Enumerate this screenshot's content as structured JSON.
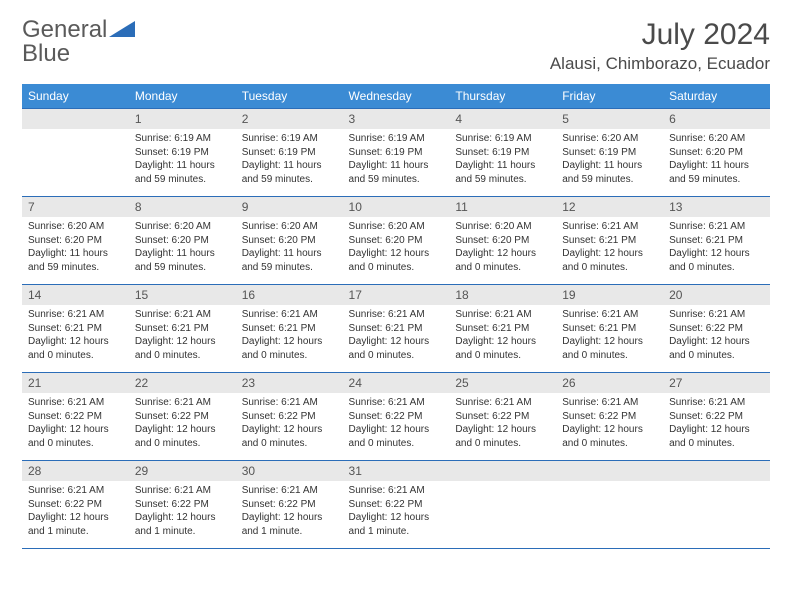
{
  "brand": {
    "word1": "General",
    "word2": "Blue"
  },
  "colors": {
    "header_bg": "#3b8bd4",
    "header_text": "#ffffff",
    "border": "#2b6db8",
    "daynum_bg": "#e8e8e8",
    "daynum_text": "#555555",
    "body_text": "#333333",
    "title_text": "#4a4a4a",
    "logo_gray": "#5a5a5a",
    "logo_blue": "#2b6db8"
  },
  "title": "July 2024",
  "location": "Alausi, Chimborazo, Ecuador",
  "weekdays": [
    "Sunday",
    "Monday",
    "Tuesday",
    "Wednesday",
    "Thursday",
    "Friday",
    "Saturday"
  ],
  "layout": {
    "columns": 7,
    "rows": 5,
    "first_weekday_index": 1,
    "daynum_fontsize": 12,
    "cell_fontsize": 10,
    "header_fontsize": 12,
    "title_fontsize": 30,
    "location_fontsize": 17
  },
  "days": [
    {
      "n": 1,
      "sunrise": "6:19 AM",
      "sunset": "6:19 PM",
      "daylight": "11 hours and 59 minutes."
    },
    {
      "n": 2,
      "sunrise": "6:19 AM",
      "sunset": "6:19 PM",
      "daylight": "11 hours and 59 minutes."
    },
    {
      "n": 3,
      "sunrise": "6:19 AM",
      "sunset": "6:19 PM",
      "daylight": "11 hours and 59 minutes."
    },
    {
      "n": 4,
      "sunrise": "6:19 AM",
      "sunset": "6:19 PM",
      "daylight": "11 hours and 59 minutes."
    },
    {
      "n": 5,
      "sunrise": "6:20 AM",
      "sunset": "6:19 PM",
      "daylight": "11 hours and 59 minutes."
    },
    {
      "n": 6,
      "sunrise": "6:20 AM",
      "sunset": "6:20 PM",
      "daylight": "11 hours and 59 minutes."
    },
    {
      "n": 7,
      "sunrise": "6:20 AM",
      "sunset": "6:20 PM",
      "daylight": "11 hours and 59 minutes."
    },
    {
      "n": 8,
      "sunrise": "6:20 AM",
      "sunset": "6:20 PM",
      "daylight": "11 hours and 59 minutes."
    },
    {
      "n": 9,
      "sunrise": "6:20 AM",
      "sunset": "6:20 PM",
      "daylight": "11 hours and 59 minutes."
    },
    {
      "n": 10,
      "sunrise": "6:20 AM",
      "sunset": "6:20 PM",
      "daylight": "12 hours and 0 minutes."
    },
    {
      "n": 11,
      "sunrise": "6:20 AM",
      "sunset": "6:20 PM",
      "daylight": "12 hours and 0 minutes."
    },
    {
      "n": 12,
      "sunrise": "6:21 AM",
      "sunset": "6:21 PM",
      "daylight": "12 hours and 0 minutes."
    },
    {
      "n": 13,
      "sunrise": "6:21 AM",
      "sunset": "6:21 PM",
      "daylight": "12 hours and 0 minutes."
    },
    {
      "n": 14,
      "sunrise": "6:21 AM",
      "sunset": "6:21 PM",
      "daylight": "12 hours and 0 minutes."
    },
    {
      "n": 15,
      "sunrise": "6:21 AM",
      "sunset": "6:21 PM",
      "daylight": "12 hours and 0 minutes."
    },
    {
      "n": 16,
      "sunrise": "6:21 AM",
      "sunset": "6:21 PM",
      "daylight": "12 hours and 0 minutes."
    },
    {
      "n": 17,
      "sunrise": "6:21 AM",
      "sunset": "6:21 PM",
      "daylight": "12 hours and 0 minutes."
    },
    {
      "n": 18,
      "sunrise": "6:21 AM",
      "sunset": "6:21 PM",
      "daylight": "12 hours and 0 minutes."
    },
    {
      "n": 19,
      "sunrise": "6:21 AM",
      "sunset": "6:21 PM",
      "daylight": "12 hours and 0 minutes."
    },
    {
      "n": 20,
      "sunrise": "6:21 AM",
      "sunset": "6:22 PM",
      "daylight": "12 hours and 0 minutes."
    },
    {
      "n": 21,
      "sunrise": "6:21 AM",
      "sunset": "6:22 PM",
      "daylight": "12 hours and 0 minutes."
    },
    {
      "n": 22,
      "sunrise": "6:21 AM",
      "sunset": "6:22 PM",
      "daylight": "12 hours and 0 minutes."
    },
    {
      "n": 23,
      "sunrise": "6:21 AM",
      "sunset": "6:22 PM",
      "daylight": "12 hours and 0 minutes."
    },
    {
      "n": 24,
      "sunrise": "6:21 AM",
      "sunset": "6:22 PM",
      "daylight": "12 hours and 0 minutes."
    },
    {
      "n": 25,
      "sunrise": "6:21 AM",
      "sunset": "6:22 PM",
      "daylight": "12 hours and 0 minutes."
    },
    {
      "n": 26,
      "sunrise": "6:21 AM",
      "sunset": "6:22 PM",
      "daylight": "12 hours and 0 minutes."
    },
    {
      "n": 27,
      "sunrise": "6:21 AM",
      "sunset": "6:22 PM",
      "daylight": "12 hours and 0 minutes."
    },
    {
      "n": 28,
      "sunrise": "6:21 AM",
      "sunset": "6:22 PM",
      "daylight": "12 hours and 1 minute."
    },
    {
      "n": 29,
      "sunrise": "6:21 AM",
      "sunset": "6:22 PM",
      "daylight": "12 hours and 1 minute."
    },
    {
      "n": 30,
      "sunrise": "6:21 AM",
      "sunset": "6:22 PM",
      "daylight": "12 hours and 1 minute."
    },
    {
      "n": 31,
      "sunrise": "6:21 AM",
      "sunset": "6:22 PM",
      "daylight": "12 hours and 1 minute."
    }
  ],
  "labels": {
    "sunrise_prefix": "Sunrise: ",
    "sunset_prefix": "Sunset: ",
    "daylight_prefix": "Daylight: "
  }
}
